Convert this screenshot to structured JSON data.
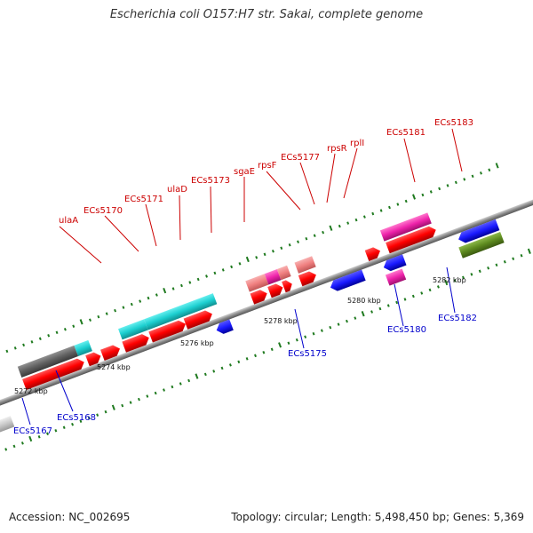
{
  "title": "Escherichia coli O157:H7 str. Sakai, complete genome",
  "footer": {
    "accession": "Accession: NC_002695",
    "summary": "Topology: circular; Length: 5,498,450 bp; Genes: 5,369"
  },
  "colors": {
    "top_label": "#cc0000",
    "bottom_label": "#0000cc",
    "backbone": "#8a8a8a",
    "tick": "#1f7a1f",
    "cds_red": "#ff0000",
    "cds_blue": "#1a1aff",
    "cyan": "#1ccfd0",
    "pink": "#f08080",
    "magenta": "#ee22aa",
    "dark_gray": "#606060",
    "light_gray": "#c8c8c8",
    "olive": "#5d8a1f"
  },
  "scale_labels": [
    {
      "text": "5272 kbp"
    },
    {
      "text": "5274 kbp"
    },
    {
      "text": "5276 kbp"
    },
    {
      "text": "5278 kbp"
    },
    {
      "text": "5280 kbp"
    },
    {
      "text": "5282 kbp"
    }
  ],
  "top_gene_labels": [
    {
      "text": "ulaA"
    },
    {
      "text": "ECs5170"
    },
    {
      "text": "ECs5171"
    },
    {
      "text": "ulaD"
    },
    {
      "text": "ECs5173"
    },
    {
      "text": "sgaE"
    },
    {
      "text": "rpsF"
    },
    {
      "text": "ECs5177"
    },
    {
      "text": "rpsR"
    },
    {
      "text": "rplI"
    },
    {
      "text": "ECs5181"
    },
    {
      "text": "ECs5183"
    }
  ],
  "bottom_gene_labels": [
    {
      "text": "ECs5167"
    },
    {
      "text": "ECs5168"
    },
    {
      "text": "ECs5175"
    },
    {
      "text": "ECs5180"
    },
    {
      "text": "ECs5182"
    }
  ]
}
